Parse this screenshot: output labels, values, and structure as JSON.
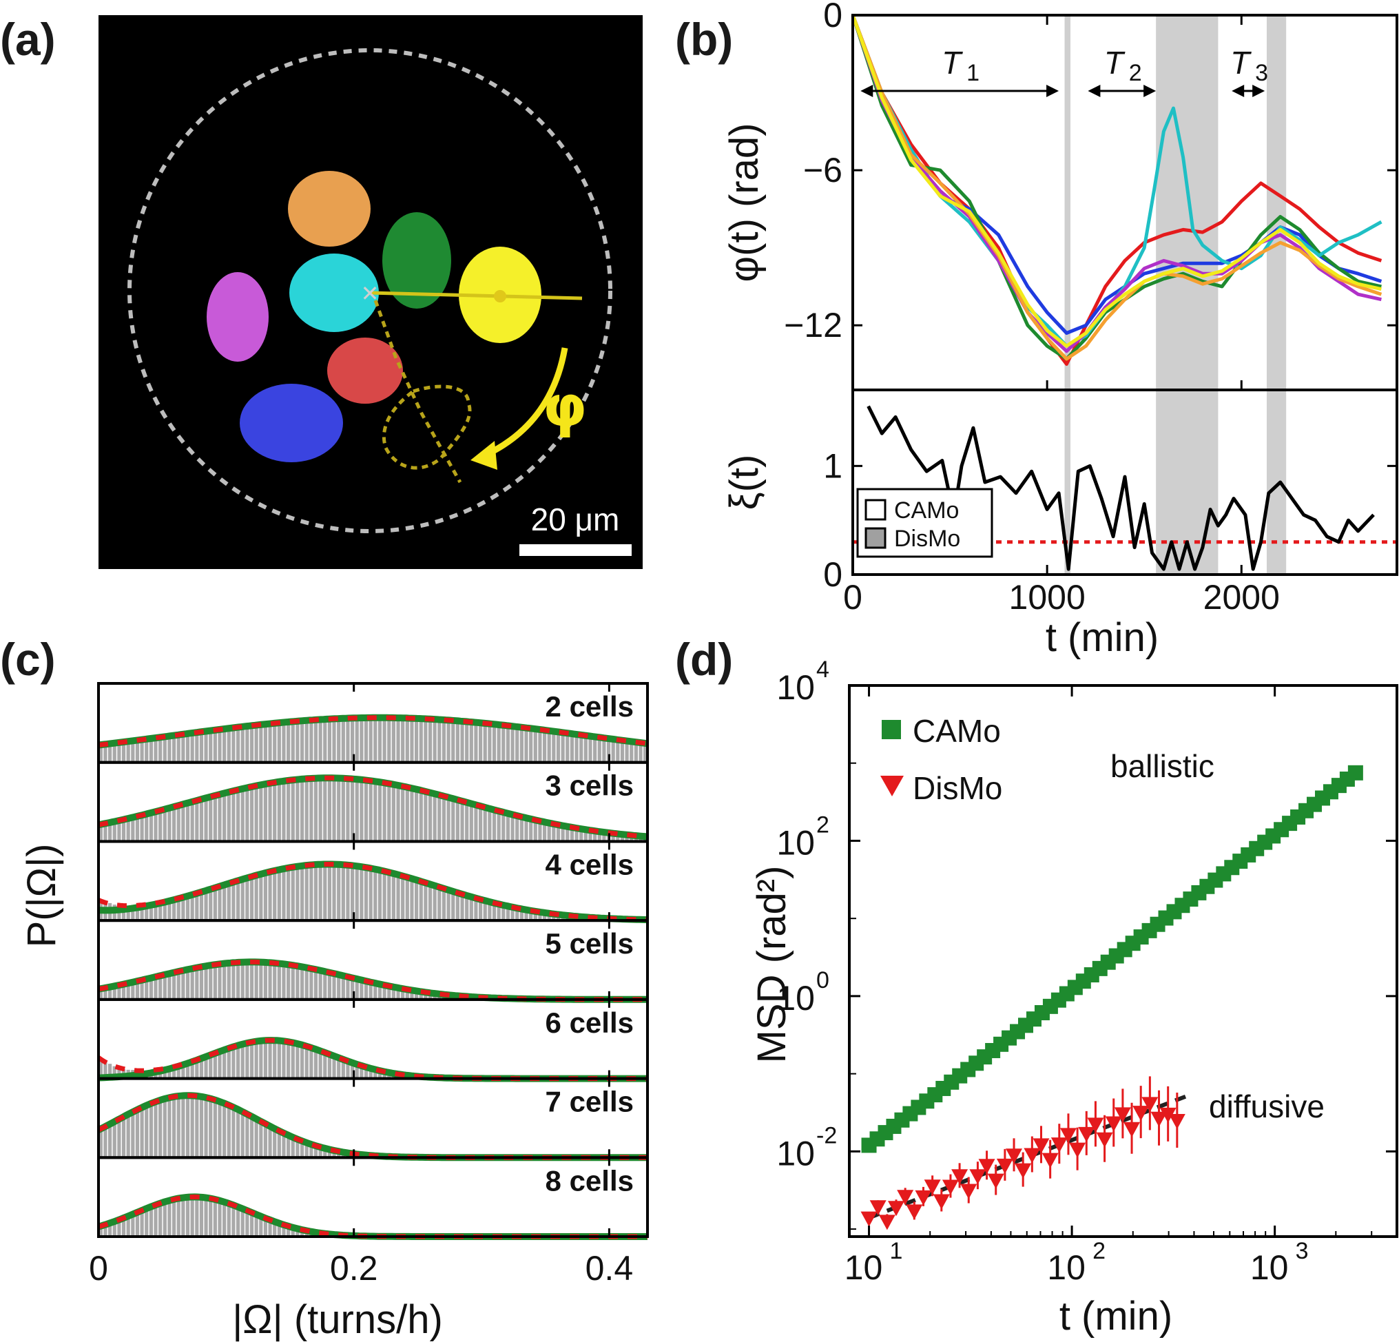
{
  "panel_labels": [
    "(a)",
    "(b)",
    "(c)",
    "(d)"
  ],
  "chart_data": [
    {
      "panel": "(a)",
      "type": "image",
      "title": "",
      "scale_bar": "20 μm",
      "angle_label": "φ",
      "cell_colors": [
        "#e8a050",
        "#1f8a32",
        "#2ad4d8",
        "#f5f02a",
        "#c85ad8",
        "#d84848",
        "#3a44e0"
      ]
    },
    {
      "panel": "(b)",
      "type": "line",
      "xlabel": "t (min)",
      "x_ticks": [
        0,
        1000,
        2000
      ],
      "xlim": [
        0,
        2800
      ],
      "top": {
        "ylabel": "φ(t) (rad)",
        "ylim": [
          -14.5,
          0
        ],
        "y_ticks": [
          0,
          -6,
          -12
        ],
        "y_tick_labels": [
          "0",
          "−6",
          "−12"
        ],
        "shaded_intervals": [
          [
            1090,
            1120
          ],
          [
            1560,
            1880
          ],
          [
            2130,
            2230
          ]
        ],
        "annotations": [
          {
            "text": "T",
            "sub": "1",
            "arrow_from": 40,
            "arrow_to": 1060
          },
          {
            "text": "T",
            "sub": "2",
            "arrow_from": 1210,
            "arrow_to": 1560
          },
          {
            "text": "T",
            "sub": "3",
            "arrow_from": 1950,
            "arrow_to": 2120
          }
        ],
        "series": [
          {
            "name": "red",
            "color": "#e41a1c",
            "x": [
              0,
              150,
              300,
              450,
              600,
              750,
              900,
              1000,
              1100,
              1200,
              1300,
              1400,
              1500,
              1600,
              1700,
              1800,
              1900,
              2000,
              2100,
              2200,
              2300,
              2400,
              2500,
              2600,
              2720
            ],
            "y": [
              0,
              -3,
              -5,
              -6.5,
              -7.5,
              -9,
              -11.5,
              -12.5,
              -13.5,
              -12,
              -10.5,
              -9.5,
              -8.8,
              -8.5,
              -8.3,
              -8.4,
              -8,
              -7.2,
              -6.5,
              -7,
              -7.5,
              -8.2,
              -8.8,
              -9.2,
              -9.5
            ]
          },
          {
            "name": "blue",
            "color": "#1f3be0",
            "x": [
              0,
              150,
              300,
              450,
              600,
              750,
              900,
              1000,
              1100,
              1200,
              1300,
              1400,
              1500,
              1600,
              1700,
              1800,
              1900,
              2000,
              2100,
              2200,
              2300,
              2400,
              2500,
              2600,
              2720
            ],
            "y": [
              0,
              -3.2,
              -5.5,
              -7,
              -7.5,
              -8.5,
              -10.5,
              -11.5,
              -12.3,
              -12,
              -11,
              -10.5,
              -10,
              -9.8,
              -9.6,
              -9.6,
              -9.6,
              -9.3,
              -8.8,
              -8.2,
              -8.5,
              -9.3,
              -9.8,
              -10,
              -10.3
            ]
          },
          {
            "name": "green",
            "color": "#1e8a2e",
            "x": [
              0,
              150,
              300,
              450,
              600,
              750,
              900,
              1000,
              1100,
              1200,
              1300,
              1400,
              1500,
              1600,
              1700,
              1800,
              1900,
              2000,
              2100,
              2200,
              2300,
              2400,
              2500,
              2600,
              2720
            ],
            "y": [
              0,
              -3.5,
              -5.8,
              -6,
              -7.2,
              -9.5,
              -12,
              -12.8,
              -13.3,
              -12.5,
              -11.5,
              -11,
              -10.5,
              -10.2,
              -10,
              -10.3,
              -10.5,
              -9.5,
              -8.5,
              -7.8,
              -8.3,
              -9.2,
              -9.8,
              -10.3,
              -10.5
            ]
          },
          {
            "name": "cyan",
            "color": "#1fbfc4",
            "x": [
              0,
              150,
              300,
              450,
              600,
              750,
              900,
              1000,
              1100,
              1200,
              1300,
              1400,
              1500,
              1550,
              1600,
              1650,
              1700,
              1750,
              1800,
              1900,
              2000,
              2100,
              2200,
              2300,
              2400,
              2500,
              2600,
              2720
            ],
            "y": [
              0,
              -3,
              -5.2,
              -7,
              -8,
              -9.5,
              -11.3,
              -12,
              -12.8,
              -12.4,
              -11.4,
              -10.5,
              -9,
              -6.8,
              -4.5,
              -3.6,
              -5.5,
              -8.3,
              -8.9,
              -9.5,
              -9.8,
              -9.3,
              -8.2,
              -8.7,
              -9.3,
              -8.8,
              -8.5,
              -8
            ]
          },
          {
            "name": "purple",
            "color": "#b030c8",
            "x": [
              0,
              150,
              300,
              450,
              600,
              750,
              900,
              1000,
              1100,
              1200,
              1300,
              1400,
              1500,
              1600,
              1700,
              1800,
              1900,
              2000,
              2100,
              2200,
              2300,
              2400,
              2500,
              2600,
              2720
            ],
            "y": [
              0,
              -3.3,
              -5.5,
              -6.8,
              -7.8,
              -9.5,
              -11.5,
              -12.3,
              -13,
              -12.3,
              -11.3,
              -10.6,
              -9.8,
              -9.5,
              -9.7,
              -10,
              -10,
              -9.5,
              -8.8,
              -8.5,
              -9,
              -9.8,
              -10.3,
              -10.8,
              -11
            ]
          },
          {
            "name": "orange",
            "color": "#f5a030",
            "x": [
              0,
              150,
              300,
              450,
              600,
              750,
              900,
              1000,
              1100,
              1200,
              1300,
              1400,
              1500,
              1600,
              1700,
              1800,
              1900,
              2000,
              2100,
              2200,
              2300,
              2400,
              2500,
              2600,
              2720
            ],
            "y": [
              0,
              -3,
              -5.4,
              -6.5,
              -7.7,
              -9.3,
              -11.5,
              -12.5,
              -13.3,
              -12.8,
              -11.8,
              -11,
              -10.3,
              -10,
              -10.1,
              -10.4,
              -10.2,
              -9.7,
              -9.2,
              -8.8,
              -9.1,
              -9.7,
              -10.2,
              -10.5,
              -10.8
            ]
          },
          {
            "name": "yellow",
            "color": "#f2ea1a",
            "x": [
              0,
              150,
              300,
              450,
              600,
              750,
              900,
              1000,
              1100,
              1200,
              1300,
              1400,
              1500,
              1600,
              1700,
              1800,
              1900,
              2000,
              2100,
              2200,
              2300,
              2400,
              2500,
              2600,
              2720
            ],
            "y": [
              0,
              -3.2,
              -5.6,
              -7,
              -7.6,
              -9.2,
              -11.2,
              -12.2,
              -12.8,
              -12.3,
              -11.4,
              -10.8,
              -10.3,
              -10,
              -9.8,
              -10.1,
              -9.9,
              -9.4,
              -8.8,
              -8.3,
              -8.8,
              -9.6,
              -10.1,
              -10.4,
              -10.6
            ]
          }
        ]
      },
      "bottom": {
        "ylabel": "ξ(t)",
        "ylim": [
          0,
          1.7
        ],
        "y_ticks": [
          0,
          1
        ],
        "threshold": 0.3,
        "legend": [
          "CAMo",
          "DisMo"
        ],
        "series": {
          "name": "xi",
          "color": "#000000",
          "x": [
            80,
            150,
            220,
            300,
            380,
            460,
            520,
            560,
            620,
            680,
            760,
            840,
            920,
            1000,
            1060,
            1110,
            1160,
            1220,
            1280,
            1340,
            1400,
            1450,
            1500,
            1540,
            1600,
            1640,
            1680,
            1720,
            1760,
            1800,
            1840,
            1880,
            1920,
            1960,
            2020,
            2060,
            2100,
            2140,
            2200,
            2260,
            2320,
            2380,
            2440,
            2500,
            2550,
            2600,
            2680
          ],
          "y": [
            1.55,
            1.3,
            1.45,
            1.15,
            0.95,
            1.05,
            0.55,
            1.0,
            1.35,
            0.85,
            0.9,
            0.75,
            0.95,
            0.6,
            0.75,
            0.05,
            0.95,
            1.0,
            0.7,
            0.35,
            0.9,
            0.25,
            0.65,
            0.2,
            0.05,
            0.3,
            0.05,
            0.3,
            0.05,
            0.25,
            0.6,
            0.45,
            0.55,
            0.7,
            0.55,
            0.05,
            0.3,
            0.75,
            0.85,
            0.7,
            0.55,
            0.5,
            0.35,
            0.3,
            0.5,
            0.4,
            0.55
          ]
        }
      }
    },
    {
      "panel": "(c)",
      "type": "bar",
      "xlabel": "|Ω| (turns/h)",
      "ylabel": "P(|Ω|)",
      "xlim": [
        0,
        0.43
      ],
      "x_ticks": [
        0,
        0.2,
        0.4
      ],
      "x_tick_labels": [
        "0",
        "0.2",
        "0.4"
      ],
      "series": [
        {
          "name": "2 cells",
          "type": "1",
          "mu": 0.22,
          "sigma": 0.16,
          "amp": 0.62,
          "low": 0.0
        },
        {
          "name": "3 cells",
          "type": "1",
          "mu": 0.18,
          "sigma": 0.11,
          "amp": 0.88,
          "low": 0.0
        },
        {
          "name": "4 cells",
          "type": "2",
          "mu": 0.18,
          "sigma": 0.085,
          "amp": 0.78,
          "low": 0.2
        },
        {
          "name": "5 cells",
          "type": "1",
          "mu": 0.12,
          "sigma": 0.075,
          "amp": 0.52,
          "low": 0.0
        },
        {
          "name": "6 cells",
          "type": "3",
          "mu": 0.135,
          "sigma": 0.048,
          "amp": 0.53,
          "low": 0.2
        },
        {
          "name": "7 cells",
          "type": "1",
          "mu": 0.07,
          "sigma": 0.055,
          "amp": 0.86,
          "low": 0.0
        },
        {
          "name": "8 cells",
          "type": "1",
          "mu": 0.075,
          "sigma": 0.045,
          "amp": 0.55,
          "low": 0.0
        }
      ],
      "fit_colors": {
        "green": "#1e8a2e",
        "red": "#e41a1c",
        "hist": "#a9a9a9"
      }
    },
    {
      "panel": "(d)",
      "type": "scatter",
      "scale": "log-log",
      "xlabel": "t (min)",
      "ylabel": "MSD (rad²)",
      "xlim": [
        8,
        4000
      ],
      "ylim": [
        0.0008,
        10000
      ],
      "x_ticks": [
        {
          "base": "10",
          "exp": "1"
        },
        {
          "base": "10",
          "exp": "2"
        },
        {
          "base": "10",
          "exp": "3"
        }
      ],
      "y_ticks": [
        {
          "base": "10",
          "exp": "4"
        },
        {
          "base": "10",
          "exp": "2"
        },
        {
          "base": "10",
          "exp": "0"
        },
        {
          "base": "10",
          "exp": "-2"
        }
      ],
      "legend": [
        "CAMo",
        "DisMo"
      ],
      "annotations": [
        "ballistic",
        "diffusive"
      ],
      "series": [
        {
          "name": "CAMo",
          "color": "#1e8a2e",
          "marker": "square",
          "x_range": [
            10,
            2500
          ],
          "slope": 2,
          "y_at_10": 0.012
        },
        {
          "name": "DisMo",
          "color": "#e41a1c",
          "marker": "triangle-down",
          "x_range": [
            10,
            330
          ],
          "slope": 1,
          "y_at_10": 0.0014
        }
      ]
    }
  ]
}
